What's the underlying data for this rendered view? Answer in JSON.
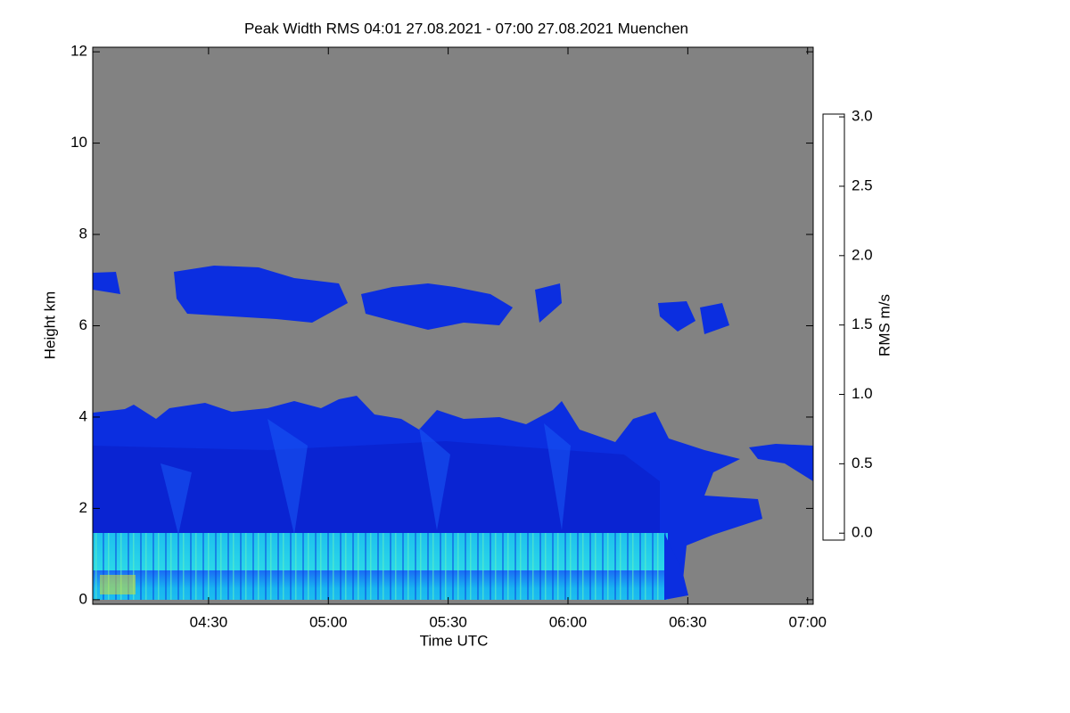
{
  "chart_data": {
    "type": "heatmap",
    "title": "Peak Width RMS   04:01 27.08.2021 - 07:00 27.08.2021 Muenchen",
    "xlabel": "Time UTC",
    "ylabel": "Height km",
    "colorbar_label": "RMS m/s",
    "xlim": [
      4.0167,
      7.0233
    ],
    "xticks": [
      {
        "value": 4.5,
        "label": "04:30"
      },
      {
        "value": 5,
        "label": "05:00"
      },
      {
        "value": 5.5,
        "label": "05:30"
      },
      {
        "value": 6,
        "label": "06:00"
      },
      {
        "value": 6.5,
        "label": "06:30"
      },
      {
        "value": 7,
        "label": "07:00"
      }
    ],
    "ylim": [
      -0.1,
      12.1
    ],
    "yticks": [
      0,
      2,
      4,
      6,
      8,
      10,
      12
    ],
    "clim": [
      -0.05,
      3.02
    ],
    "cticks": [
      {
        "value": 0,
        "label": "0.0"
      },
      0.5,
      {
        "value": 1,
        "label": "1.0"
      },
      1.5,
      {
        "value": 2,
        "label": "2.0"
      },
      2.5,
      {
        "value": 3,
        "label": "3.0"
      }
    ],
    "colormap": "jet",
    "missing_color": "#828282"
  }
}
